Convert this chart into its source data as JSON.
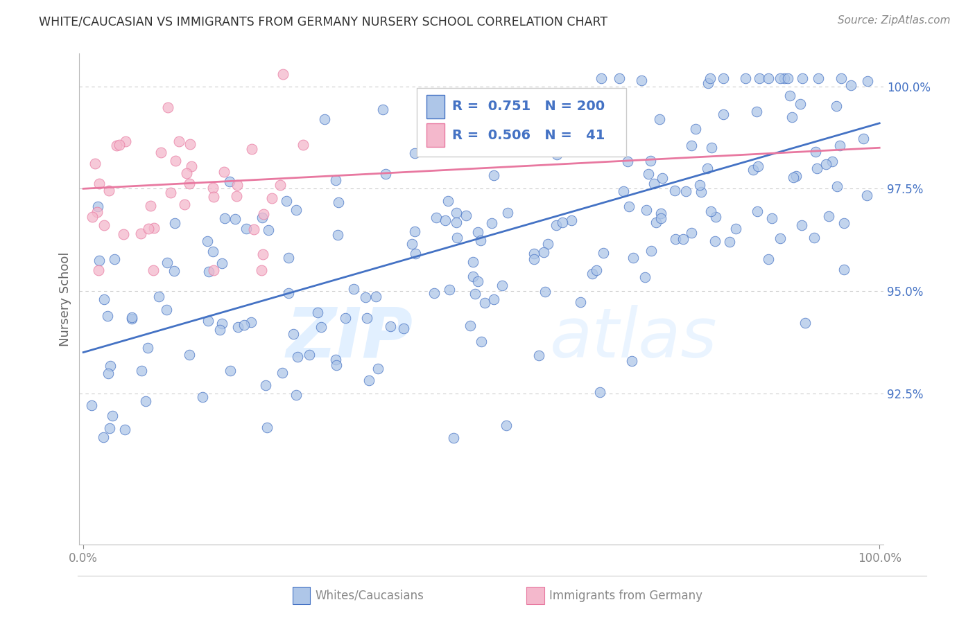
{
  "title": "WHITE/CAUCASIAN VS IMMIGRANTS FROM GERMANY NURSERY SCHOOL CORRELATION CHART",
  "source": "Source: ZipAtlas.com",
  "ylabel": "Nursery School",
  "xlabel": "",
  "legend_label1": "Whites/Caucasians",
  "legend_label2": "Immigrants from Germany",
  "R1": 0.751,
  "N1": 200,
  "R2": 0.506,
  "N2": 41,
  "color1": "#AEC6E8",
  "color2": "#F4B8CC",
  "line_color1": "#4472C4",
  "line_color2": "#E878A0",
  "xmin": 0.0,
  "xmax": 1.0,
  "ymin": 0.888,
  "ymax": 1.008,
  "yticks": [
    0.925,
    0.95,
    0.975,
    1.0
  ],
  "ytick_labels": [
    "92.5%",
    "95.0%",
    "97.5%",
    "100.0%"
  ],
  "xtick_labels": [
    "0.0%",
    "100.0%"
  ],
  "watermark_zip": "ZIP",
  "watermark_atlas": "atlas",
  "title_color": "#333333",
  "source_color": "#888888",
  "axis_label_color": "#666666",
  "tick_color": "#888888",
  "background_color": "#FFFFFF",
  "grid_color": "#CCCCCC",
  "blue_line_y0": 0.935,
  "blue_line_y1": 0.991,
  "pink_line_y0": 0.975,
  "pink_line_y1": 0.985
}
